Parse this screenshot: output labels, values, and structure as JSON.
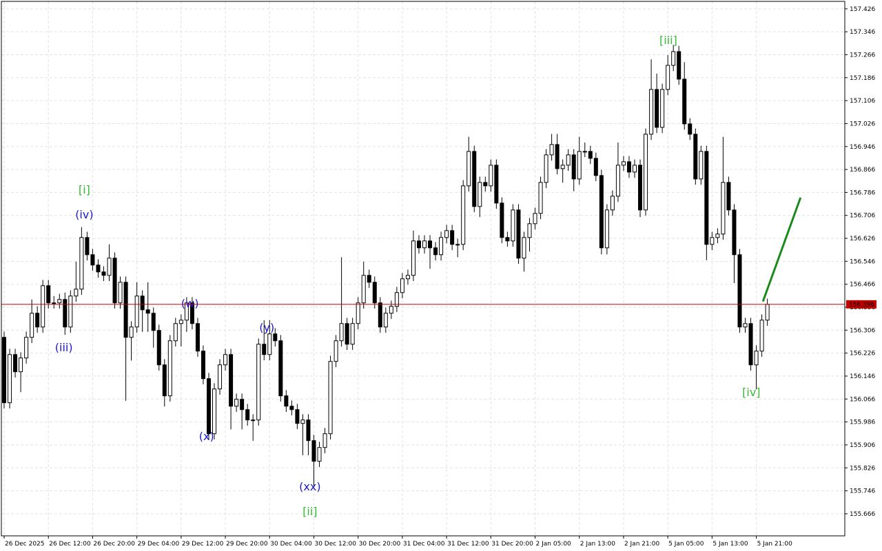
{
  "chart_data": {
    "type": "candlestick",
    "ylim": [
      155.589,
      157.452
    ],
    "xlim": [
      -0.5,
      152
    ],
    "yticks": [
      157.426,
      157.346,
      157.266,
      157.186,
      157.106,
      157.026,
      156.946,
      156.866,
      156.786,
      156.706,
      156.626,
      156.546,
      156.466,
      156.386,
      156.306,
      156.226,
      156.146,
      156.066,
      155.986,
      155.906,
      155.826,
      155.746,
      155.666
    ],
    "xticks": [
      {
        "value": 0,
        "label": "26 Dec 2025"
      },
      {
        "value": 8,
        "label": "26 Dec 12:00"
      },
      {
        "value": 16,
        "label": "26 Dec 20:00"
      },
      {
        "value": 24,
        "label": "29 Dec 04:00"
      },
      {
        "value": 32,
        "label": "29 Dec 12:00"
      },
      {
        "value": 40,
        "label": "29 Dec 20:00"
      },
      {
        "value": 48,
        "label": "30 Dec 04:00"
      },
      {
        "value": 56,
        "label": "30 Dec 12:00"
      },
      {
        "value": 64,
        "label": "30 Dec 20:00"
      },
      {
        "value": 72,
        "label": "31 Dec 04:00"
      },
      {
        "value": 80,
        "label": "31 Dec 12:00"
      },
      {
        "value": 88,
        "label": "31 Dec 20:00"
      },
      {
        "value": 96,
        "label": "2 Jan 05:00"
      },
      {
        "value": 104,
        "label": "2 Jan 13:00"
      },
      {
        "value": 112,
        "label": "2 Jan 21:00"
      },
      {
        "value": 120,
        "label": "5 Jan 05:00"
      },
      {
        "value": 128,
        "label": "5 Jan 13:00"
      },
      {
        "value": 136,
        "label": "5 Jan 21:00"
      }
    ],
    "grid": true,
    "up_color": "#ffffff",
    "down_color": "#000000",
    "current_price": {
      "value": 156.396,
      "label": "156.396",
      "color": "#c00000"
    },
    "forecast": {
      "x": [
        137.2,
        144
      ],
      "y": [
        156.406,
        156.768
      ],
      "color": "#1a8a1a"
    },
    "annotations": [
      {
        "text": "[i]",
        "x": 14.5,
        "y": 156.797,
        "color": "#33bb33"
      },
      {
        "text": "(iv)",
        "x": 14.5,
        "y": 156.71,
        "color": "#1a1acc"
      },
      {
        "text": "(iii)",
        "x": 10.8,
        "y": 156.247,
        "color": "#1a1acc"
      },
      {
        "text": "(w)",
        "x": 33.6,
        "y": 156.401,
        "color": "#1a1acc"
      },
      {
        "text": "(x)",
        "x": 36.6,
        "y": 155.937,
        "color": "#1a1acc"
      },
      {
        "text": "(y)",
        "x": 47.5,
        "y": 156.317,
        "color": "#1a1acc"
      },
      {
        "text": "(xx)",
        "x": 55.3,
        "y": 155.762,
        "color": "#1a1acc"
      },
      {
        "text": "[ii]",
        "x": 55.3,
        "y": 155.676,
        "color": "#33bb33"
      },
      {
        "text": "[iii]",
        "x": 120.1,
        "y": 157.318,
        "color": "#33bb33"
      },
      {
        "text": "[iv]",
        "x": 135.1,
        "y": 156.091,
        "color": "#33bb33"
      }
    ],
    "ohlc": [
      [
        156.281,
        156.301,
        156.033,
        156.053
      ],
      [
        156.053,
        156.241,
        156.033,
        156.221
      ],
      [
        156.221,
        156.241,
        156.141,
        156.161
      ],
      [
        156.161,
        156.229,
        156.09,
        156.209
      ],
      [
        156.209,
        156.301,
        156.189,
        156.281
      ],
      [
        156.281,
        156.413,
        156.261,
        156.365
      ],
      [
        156.365,
        156.389,
        156.297,
        156.317
      ],
      [
        156.317,
        156.481,
        156.297,
        156.461
      ],
      [
        156.461,
        156.481,
        156.381,
        156.401
      ],
      [
        156.401,
        156.425,
        156.381,
        156.401
      ],
      [
        156.401,
        156.433,
        156.381,
        156.413
      ],
      [
        156.413,
        156.437,
        156.29,
        156.317
      ],
      [
        156.317,
        156.445,
        156.297,
        156.425
      ],
      [
        156.425,
        156.545,
        156.405,
        156.449
      ],
      [
        156.449,
        156.665,
        156.429,
        156.629
      ],
      [
        156.629,
        156.649,
        156.549,
        156.569
      ],
      [
        156.569,
        156.589,
        156.513,
        156.533
      ],
      [
        156.533,
        156.553,
        156.489,
        156.509
      ],
      [
        156.509,
        156.529,
        156.477,
        156.497
      ],
      [
        156.497,
        156.605,
        156.477,
        156.557
      ],
      [
        156.557,
        156.577,
        156.381,
        156.401
      ],
      [
        156.401,
        156.493,
        156.381,
        156.473
      ],
      [
        156.473,
        156.493,
        156.06,
        156.281
      ],
      [
        156.281,
        156.337,
        156.2,
        156.317
      ],
      [
        156.317,
        156.473,
        156.297,
        156.425
      ],
      [
        156.425,
        156.445,
        156.3,
        156.377
      ],
      [
        156.377,
        156.473,
        156.3,
        156.365
      ],
      [
        156.365,
        156.385,
        156.245,
        156.305
      ],
      [
        156.305,
        156.325,
        156.165,
        156.185
      ],
      [
        156.185,
        156.205,
        156.04,
        156.077
      ],
      [
        156.077,
        156.289,
        156.057,
        156.269
      ],
      [
        156.269,
        156.349,
        156.249,
        156.329
      ],
      [
        156.329,
        156.361,
        156.249,
        156.341
      ],
      [
        156.341,
        156.421,
        156.3,
        156.401
      ],
      [
        156.401,
        156.421,
        156.309,
        156.329
      ],
      [
        156.329,
        156.349,
        156.213,
        156.233
      ],
      [
        156.233,
        156.253,
        156.117,
        156.137
      ],
      [
        156.137,
        156.157,
        155.925,
        155.945
      ],
      [
        155.945,
        156.121,
        155.925,
        156.101
      ],
      [
        156.101,
        156.205,
        156.081,
        156.185
      ],
      [
        156.185,
        156.241,
        156.165,
        156.221
      ],
      [
        156.221,
        156.241,
        155.96,
        156.041
      ],
      [
        156.041,
        156.085,
        156.021,
        156.065
      ],
      [
        156.065,
        156.085,
        155.96,
        156.029
      ],
      [
        156.029,
        156.049,
        155.973,
        155.993
      ],
      [
        155.993,
        156.013,
        155.92,
        155.993
      ],
      [
        155.993,
        156.277,
        155.973,
        156.257
      ],
      [
        156.257,
        156.341,
        156.201,
        156.221
      ],
      [
        156.221,
        156.341,
        156.201,
        156.293
      ],
      [
        156.293,
        156.313,
        156.249,
        156.269
      ],
      [
        156.269,
        156.289,
        156.057,
        156.077
      ],
      [
        156.077,
        156.097,
        156.021,
        156.041
      ],
      [
        156.041,
        156.061,
        156.009,
        156.029
      ],
      [
        156.029,
        156.049,
        155.961,
        155.981
      ],
      [
        155.981,
        156.013,
        155.87,
        155.993
      ],
      [
        155.993,
        156.013,
        155.87,
        155.921
      ],
      [
        155.921,
        155.941,
        155.76,
        155.849
      ],
      [
        155.849,
        155.917,
        155.829,
        155.897
      ],
      [
        155.897,
        155.965,
        155.877,
        155.945
      ],
      [
        155.945,
        156.217,
        155.925,
        156.197
      ],
      [
        156.197,
        156.289,
        156.177,
        156.269
      ],
      [
        156.269,
        156.56,
        156.249,
        156.329
      ],
      [
        156.329,
        156.349,
        156.237,
        156.257
      ],
      [
        156.257,
        156.349,
        156.237,
        156.329
      ],
      [
        156.329,
        156.421,
        156.309,
        156.401
      ],
      [
        156.401,
        156.545,
        156.381,
        156.497
      ],
      [
        156.497,
        156.517,
        156.453,
        156.473
      ],
      [
        156.473,
        156.493,
        156.381,
        156.401
      ],
      [
        156.401,
        156.421,
        156.297,
        156.317
      ],
      [
        156.317,
        156.385,
        156.297,
        156.365
      ],
      [
        156.365,
        156.409,
        156.345,
        156.389
      ],
      [
        156.389,
        156.457,
        156.369,
        156.437
      ],
      [
        156.437,
        156.505,
        156.417,
        156.485
      ],
      [
        156.485,
        156.517,
        156.465,
        156.497
      ],
      [
        156.497,
        156.653,
        156.477,
        156.617
      ],
      [
        156.617,
        156.637,
        156.573,
        156.593
      ],
      [
        156.593,
        156.637,
        156.573,
        156.617
      ],
      [
        156.617,
        156.637,
        156.52,
        156.593
      ],
      [
        156.593,
        156.613,
        156.549,
        156.569
      ],
      [
        156.569,
        156.649,
        156.549,
        156.629
      ],
      [
        156.629,
        156.673,
        156.609,
        156.653
      ],
      [
        156.653,
        156.673,
        156.585,
        156.605
      ],
      [
        156.605,
        156.625,
        156.56,
        156.605
      ],
      [
        156.605,
        156.829,
        156.585,
        156.809
      ],
      [
        156.809,
        156.98,
        156.789,
        156.929
      ],
      [
        156.929,
        156.949,
        156.717,
        156.737
      ],
      [
        156.737,
        156.841,
        156.7,
        156.821
      ],
      [
        156.821,
        156.841,
        156.789,
        156.809
      ],
      [
        156.809,
        156.901,
        156.789,
        156.881
      ],
      [
        156.881,
        156.901,
        156.729,
        156.749
      ],
      [
        156.749,
        156.769,
        156.609,
        156.629
      ],
      [
        156.629,
        156.649,
        156.597,
        156.617
      ],
      [
        156.617,
        156.745,
        156.597,
        156.725
      ],
      [
        156.725,
        156.745,
        156.537,
        156.557
      ],
      [
        156.557,
        156.649,
        156.51,
        156.629
      ],
      [
        156.629,
        156.697,
        156.58,
        156.677
      ],
      [
        156.677,
        156.733,
        156.657,
        156.713
      ],
      [
        156.713,
        156.841,
        156.693,
        156.821
      ],
      [
        156.821,
        156.937,
        156.801,
        156.917
      ],
      [
        156.917,
        156.99,
        156.897,
        156.953
      ],
      [
        156.953,
        156.99,
        156.849,
        156.869
      ],
      [
        156.869,
        156.901,
        156.82,
        156.881
      ],
      [
        156.881,
        156.937,
        156.861,
        156.917
      ],
      [
        156.917,
        156.937,
        156.79,
        156.833
      ],
      [
        156.833,
        156.98,
        156.813,
        156.929
      ],
      [
        156.929,
        156.96,
        156.909,
        156.929
      ],
      [
        156.929,
        156.949,
        156.885,
        156.905
      ],
      [
        156.905,
        156.925,
        156.825,
        156.845
      ],
      [
        156.845,
        156.865,
        156.57,
        156.593
      ],
      [
        156.593,
        156.745,
        156.57,
        156.725
      ],
      [
        156.725,
        156.793,
        156.705,
        156.773
      ],
      [
        156.773,
        156.96,
        156.753,
        156.881
      ],
      [
        156.881,
        156.913,
        156.861,
        156.893
      ],
      [
        156.893,
        156.913,
        156.837,
        156.857
      ],
      [
        156.857,
        156.901,
        156.837,
        156.881
      ],
      [
        156.881,
        156.901,
        156.7,
        156.725
      ],
      [
        156.725,
        157.009,
        156.705,
        156.989
      ],
      [
        156.989,
        157.25,
        156.969,
        157.145
      ],
      [
        157.145,
        157.2,
        156.993,
        157.013
      ],
      [
        157.013,
        157.165,
        156.993,
        157.145
      ],
      [
        157.145,
        157.265,
        157.125,
        157.229
      ],
      [
        157.229,
        157.3,
        157.209,
        157.277
      ],
      [
        157.277,
        157.297,
        157.161,
        157.181
      ],
      [
        157.181,
        157.24,
        157.005,
        157.025
      ],
      [
        157.025,
        157.045,
        156.969,
        156.989
      ],
      [
        156.989,
        157.009,
        156.813,
        156.833
      ],
      [
        156.833,
        156.949,
        156.813,
        156.929
      ],
      [
        156.929,
        156.949,
        156.55,
        156.605
      ],
      [
        156.605,
        156.649,
        156.585,
        156.629
      ],
      [
        156.629,
        156.661,
        156.609,
        156.641
      ],
      [
        156.641,
        156.98,
        156.621,
        156.821
      ],
      [
        156.821,
        156.841,
        156.705,
        156.725
      ],
      [
        156.725,
        156.745,
        156.47,
        156.569
      ],
      [
        156.569,
        156.589,
        156.297,
        156.317
      ],
      [
        156.317,
        156.349,
        156.297,
        156.329
      ],
      [
        156.329,
        156.349,
        156.165,
        156.185
      ],
      [
        156.185,
        156.253,
        156.1,
        156.233
      ],
      [
        156.233,
        156.361,
        156.213,
        156.341
      ],
      [
        156.341,
        156.416,
        156.321,
        156.396
      ]
    ]
  }
}
